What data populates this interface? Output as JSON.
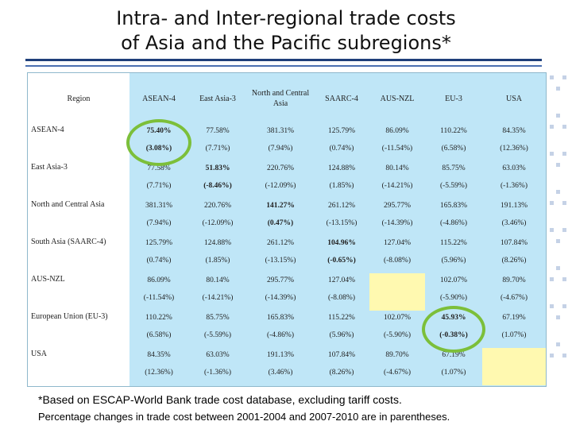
{
  "slide": {
    "title_line1": "Intra- and Inter-regional trade costs",
    "title_line2": "of Asia and the Pacific subregions*",
    "note": "*Based on ESCAP-World Bank trade cost database, excluding tariff costs.",
    "subnote": "Percentage changes in trade cost between 2001-2004 and 2007-2010 are in parentheses."
  },
  "table": {
    "region_header": "Region",
    "columns": [
      "ASEAN-4",
      "East Asia-3",
      "North and Central Asia",
      "SAARC-4",
      "AUS-NZL",
      "EU-3",
      "USA"
    ],
    "rows": [
      {
        "label": "ASEAN-4",
        "values": [
          "75.40%",
          "77.58%",
          "381.31%",
          "125.79%",
          "86.09%",
          "110.22%",
          "84.35%"
        ],
        "changes": [
          "(3.08%)",
          "(7.71%)",
          "(7.94%)",
          "(0.74%)",
          "(-11.54%)",
          "(6.58%)",
          "(12.36%)"
        ]
      },
      {
        "label": "East Asia-3",
        "values": [
          "77.58%",
          "51.83%",
          "220.76%",
          "124.88%",
          "80.14%",
          "85.75%",
          "63.03%"
        ],
        "changes": [
          "(7.71%)",
          "(-8.46%)",
          "(-12.09%)",
          "(1.85%)",
          "(-14.21%)",
          "(-5.59%)",
          "(-1.36%)"
        ]
      },
      {
        "label": "North and Central Asia",
        "values": [
          "381.31%",
          "220.76%",
          "141.27%",
          "261.12%",
          "295.77%",
          "165.83%",
          "191.13%"
        ],
        "changes": [
          "(7.94%)",
          "(-12.09%)",
          "(0.47%)",
          "(-13.15%)",
          "(-14.39%)",
          "(-4.86%)",
          "(3.46%)"
        ]
      },
      {
        "label": "South Asia (SAARC-4)",
        "values": [
          "125.79%",
          "124.88%",
          "261.12%",
          "104.96%",
          "127.04%",
          "115.22%",
          "107.84%"
        ],
        "changes": [
          "(0.74%)",
          "(1.85%)",
          "(-13.15%)",
          "(-0.65%)",
          "(-8.08%)",
          "(5.96%)",
          "(8.26%)"
        ]
      },
      {
        "label": "AUS-NZL",
        "values": [
          "86.09%",
          "80.14%",
          "295.77%",
          "127.04%",
          "",
          "102.07%",
          "89.70%"
        ],
        "changes": [
          "(-11.54%)",
          "(-14.21%)",
          "(-14.39%)",
          "(-8.08%)",
          "",
          "(-5.90%)",
          "(-4.67%)"
        ]
      },
      {
        "label": "European Union (EU-3)",
        "values": [
          "110.22%",
          "85.75%",
          "165.83%",
          "115.22%",
          "102.07%",
          "45.93%",
          "67.19%"
        ],
        "changes": [
          "(6.58%)",
          "(-5.59%)",
          "(-4.86%)",
          "(5.96%)",
          "(-5.90%)",
          "(-0.38%)",
          "(1.07%)"
        ]
      },
      {
        "label": "USA",
        "values": [
          "84.35%",
          "63.03%",
          "191.13%",
          "107.84%",
          "89.70%",
          "67.19%",
          ""
        ],
        "changes": [
          "(12.36%)",
          "(-1.36%)",
          "(3.46%)",
          "(8.26%)",
          "(-4.67%)",
          "(1.07%)",
          ""
        ]
      }
    ]
  },
  "colors": {
    "table_bg": "#bfe6f7",
    "diagonal_blank": "#fff9b0",
    "highlight_circle": "#7cbf3a",
    "title_rule": "#1f3f7a"
  }
}
